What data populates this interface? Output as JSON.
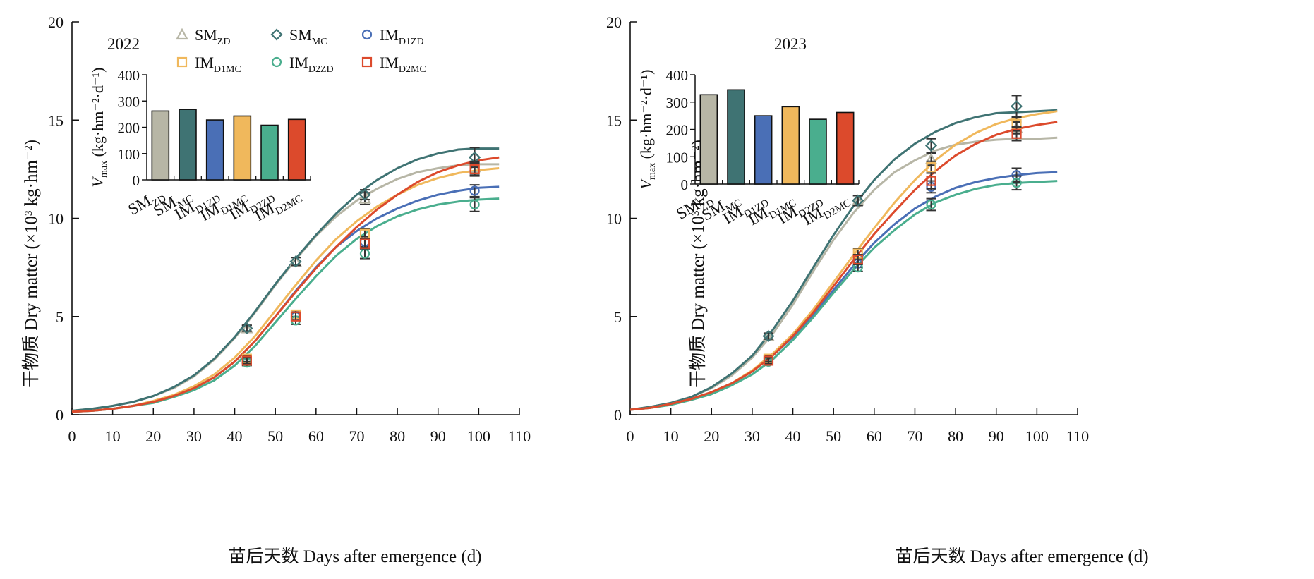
{
  "chart_data": [
    {
      "type": "line",
      "panel_label": "2022",
      "xlabel": "苗后天数 Days after emergence (d)",
      "ylabel": "干物质 Dry matter (×10³ kg·hm⁻²)",
      "xlim": [
        0,
        110
      ],
      "ylim": [
        0,
        20
      ],
      "x_ticks": [
        "0",
        "10",
        "20",
        "30",
        "40",
        "50",
        "60",
        "70",
        "80",
        "90",
        "100",
        "110"
      ],
      "y_ticks": [
        "0",
        "5",
        "10",
        "15",
        "20"
      ],
      "series": [
        {
          "name": "SM_ZD",
          "color": "#b7b6a6",
          "marker": "triangle",
          "curve_x": [
            0,
            5,
            10,
            15,
            20,
            25,
            30,
            35,
            40,
            45,
            50,
            55,
            60,
            65,
            70,
            75,
            80,
            85,
            90,
            95,
            99,
            105
          ],
          "curve_y": [
            0.2,
            0.3,
            0.45,
            0.65,
            0.95,
            1.35,
            1.95,
            2.8,
            3.9,
            5.2,
            6.6,
            7.9,
            9.1,
            10.1,
            10.9,
            11.5,
            12.0,
            12.35,
            12.55,
            12.7,
            12.75,
            12.75
          ],
          "obs_x": [
            43,
            55,
            72,
            99
          ],
          "obs_y": [
            4.4,
            7.8,
            11.0,
            12.6
          ],
          "obs_err": [
            0.15,
            0.2,
            0.3,
            0.3
          ]
        },
        {
          "name": "SM_MC",
          "color": "#3f7373",
          "marker": "diamond",
          "curve_x": [
            0,
            5,
            10,
            15,
            20,
            25,
            30,
            35,
            40,
            45,
            50,
            55,
            60,
            65,
            70,
            75,
            80,
            85,
            90,
            95,
            99,
            105
          ],
          "curve_y": [
            0.2,
            0.3,
            0.45,
            0.65,
            0.95,
            1.4,
            2.0,
            2.85,
            3.95,
            5.25,
            6.65,
            7.95,
            9.15,
            10.25,
            11.2,
            11.95,
            12.55,
            13.0,
            13.3,
            13.5,
            13.55,
            13.55
          ],
          "obs_x": [
            43,
            55,
            72,
            99
          ],
          "obs_y": [
            4.4,
            7.8,
            11.2,
            13.1
          ],
          "obs_err": [
            0.15,
            0.2,
            0.25,
            0.5
          ]
        },
        {
          "name": "IM_D1ZD",
          "color": "#4a6fb6",
          "marker": "circle",
          "curve_x": [
            0,
            5,
            10,
            15,
            20,
            25,
            30,
            35,
            40,
            45,
            50,
            55,
            60,
            65,
            70,
            75,
            80,
            85,
            90,
            95,
            100,
            105
          ],
          "curve_y": [
            0.15,
            0.2,
            0.3,
            0.45,
            0.65,
            0.95,
            1.35,
            1.9,
            2.7,
            3.75,
            5.0,
            6.3,
            7.5,
            8.55,
            9.35,
            10.0,
            10.5,
            10.9,
            11.2,
            11.4,
            11.55,
            11.6
          ],
          "obs_x": [
            43,
            55,
            72,
            99
          ],
          "obs_y": [
            2.75,
            5.0,
            8.8,
            11.4
          ],
          "obs_err": [
            0.15,
            0.2,
            0.25,
            0.3
          ]
        },
        {
          "name": "IM_D1MC",
          "color": "#f0b85c",
          "marker": "square",
          "curve_x": [
            0,
            5,
            10,
            15,
            20,
            25,
            30,
            35,
            40,
            45,
            50,
            55,
            60,
            65,
            70,
            75,
            80,
            85,
            90,
            95,
            100,
            105
          ],
          "curve_y": [
            0.15,
            0.2,
            0.3,
            0.45,
            0.7,
            1.0,
            1.45,
            2.05,
            2.9,
            4.0,
            5.3,
            6.6,
            7.85,
            8.95,
            9.85,
            10.6,
            11.2,
            11.7,
            12.05,
            12.3,
            12.45,
            12.55
          ],
          "obs_x": [
            43,
            55,
            72,
            99
          ],
          "obs_y": [
            2.85,
            5.1,
            9.2,
            12.5
          ],
          "obs_err": [
            0.15,
            0.2,
            0.25,
            0.3
          ]
        },
        {
          "name": "IM_D2ZD",
          "color": "#4aae8e",
          "marker": "circle",
          "curve_x": [
            0,
            5,
            10,
            15,
            20,
            25,
            30,
            35,
            40,
            45,
            50,
            55,
            60,
            65,
            70,
            75,
            80,
            85,
            90,
            95,
            100,
            105
          ],
          "curve_y": [
            0.15,
            0.2,
            0.3,
            0.45,
            0.6,
            0.9,
            1.25,
            1.75,
            2.5,
            3.5,
            4.7,
            5.9,
            7.05,
            8.1,
            8.95,
            9.6,
            10.1,
            10.45,
            10.7,
            10.85,
            10.95,
            11.0
          ],
          "obs_x": [
            43,
            55,
            72,
            99
          ],
          "obs_y": [
            2.65,
            4.8,
            8.2,
            10.7
          ],
          "obs_err": [
            0.15,
            0.2,
            0.25,
            0.35
          ]
        },
        {
          "name": "IM_D2MC",
          "color": "#dc4a2c",
          "marker": "square",
          "curve_x": [
            0,
            5,
            10,
            15,
            20,
            25,
            30,
            35,
            40,
            45,
            50,
            55,
            60,
            65,
            70,
            75,
            80,
            85,
            90,
            95,
            100,
            105
          ],
          "curve_y": [
            0.15,
            0.2,
            0.3,
            0.45,
            0.65,
            0.95,
            1.35,
            1.9,
            2.7,
            3.75,
            5.0,
            6.25,
            7.45,
            8.55,
            9.55,
            10.45,
            11.2,
            11.85,
            12.35,
            12.7,
            12.95,
            13.1
          ],
          "obs_x": [
            43,
            55,
            72,
            99
          ],
          "obs_y": [
            2.75,
            5.0,
            8.7,
            12.5
          ],
          "obs_err": [
            0.15,
            0.2,
            0.25,
            0.35
          ]
        }
      ],
      "inset": {
        "type": "bar",
        "ylabel": "Vmax (kg·hm⁻²·d⁻¹)",
        "ylim": [
          0,
          400
        ],
        "y_ticks": [
          "0",
          "100",
          "200",
          "300",
          "400"
        ],
        "categories": [
          "SM_ZD",
          "SM_MC",
          "IM_D1ZD",
          "IM_D1MC",
          "IM_D2ZD",
          "IM_D2MC"
        ],
        "values": [
          262,
          268,
          228,
          243,
          208,
          230
        ]
      }
    },
    {
      "type": "line",
      "panel_label": "2023",
      "xlabel": "苗后天数 Days after emergence (d)",
      "ylabel": "干物质 Dry matter (×10³ kg·hm⁻²)",
      "xlim": [
        0,
        110
      ],
      "ylim": [
        0,
        20
      ],
      "x_ticks": [
        "0",
        "10",
        "20",
        "30",
        "40",
        "50",
        "60",
        "70",
        "80",
        "90",
        "100",
        "110"
      ],
      "y_ticks": [
        "0",
        "5",
        "10",
        "15",
        "20"
      ],
      "series": [
        {
          "name": "SM_ZD",
          "color": "#b7b6a6",
          "marker": "triangle",
          "curve_x": [
            0,
            5,
            10,
            15,
            20,
            25,
            30,
            35,
            40,
            45,
            50,
            55,
            60,
            65,
            70,
            75,
            80,
            85,
            90,
            95,
            100,
            105
          ],
          "curve_y": [
            0.25,
            0.4,
            0.6,
            0.9,
            1.35,
            2.0,
            2.9,
            4.1,
            5.6,
            7.3,
            8.9,
            10.3,
            11.45,
            12.35,
            12.95,
            13.45,
            13.75,
            13.9,
            14.0,
            14.05,
            14.05,
            14.1
          ],
          "obs_x": [
            34,
            56,
            74,
            95
          ],
          "obs_y": [
            4.0,
            10.9,
            13.0,
            14.6
          ],
          "obs_err": [
            0.15,
            0.25,
            0.3,
            0.3
          ]
        },
        {
          "name": "SM_MC",
          "color": "#3f7373",
          "marker": "diamond",
          "curve_x": [
            0,
            5,
            10,
            15,
            20,
            25,
            30,
            35,
            40,
            45,
            50,
            55,
            60,
            65,
            70,
            75,
            80,
            85,
            90,
            95,
            100,
            105
          ],
          "curve_y": [
            0.25,
            0.4,
            0.6,
            0.9,
            1.4,
            2.1,
            3.0,
            4.3,
            5.8,
            7.5,
            9.15,
            10.65,
            11.95,
            13.0,
            13.8,
            14.4,
            14.85,
            15.15,
            15.35,
            15.4,
            15.45,
            15.5
          ],
          "obs_x": [
            34,
            56,
            74,
            95
          ],
          "obs_y": [
            4.0,
            10.9,
            13.7,
            15.7
          ],
          "obs_err": [
            0.15,
            0.25,
            0.35,
            0.55
          ]
        },
        {
          "name": "IM_D1ZD",
          "color": "#4a6fb6",
          "marker": "circle",
          "curve_x": [
            0,
            5,
            10,
            15,
            20,
            25,
            30,
            35,
            40,
            45,
            50,
            55,
            60,
            65,
            70,
            75,
            80,
            85,
            90,
            95,
            100,
            105
          ],
          "curve_y": [
            0.25,
            0.35,
            0.55,
            0.8,
            1.15,
            1.6,
            2.2,
            3.0,
            3.95,
            5.1,
            6.35,
            7.6,
            8.75,
            9.7,
            10.5,
            11.1,
            11.55,
            11.85,
            12.05,
            12.2,
            12.3,
            12.35
          ],
          "obs_x": [
            34,
            56,
            74,
            95
          ],
          "obs_y": [
            2.75,
            7.7,
            11.6,
            12.2
          ],
          "obs_err": [
            0.15,
            0.2,
            0.3,
            0.35
          ]
        },
        {
          "name": "IM_D1MC",
          "color": "#f0b85c",
          "marker": "square",
          "curve_x": [
            0,
            5,
            10,
            15,
            20,
            25,
            30,
            35,
            40,
            45,
            50,
            55,
            60,
            65,
            70,
            75,
            80,
            85,
            90,
            95,
            100,
            105
          ],
          "curve_y": [
            0.25,
            0.35,
            0.55,
            0.8,
            1.15,
            1.6,
            2.25,
            3.1,
            4.1,
            5.35,
            6.75,
            8.15,
            9.5,
            10.8,
            11.95,
            12.95,
            13.75,
            14.35,
            14.8,
            15.1,
            15.3,
            15.45
          ],
          "obs_x": [
            34,
            56,
            74,
            95
          ],
          "obs_y": [
            2.85,
            8.2,
            12.6,
            14.8
          ],
          "obs_err": [
            0.15,
            0.25,
            0.3,
            0.35
          ]
        },
        {
          "name": "IM_D2ZD",
          "color": "#4aae8e",
          "marker": "circle",
          "curve_x": [
            0,
            5,
            10,
            15,
            20,
            25,
            30,
            35,
            40,
            45,
            50,
            55,
            60,
            65,
            70,
            75,
            80,
            85,
            90,
            95,
            100,
            105
          ],
          "curve_y": [
            0.25,
            0.35,
            0.5,
            0.75,
            1.05,
            1.5,
            2.05,
            2.8,
            3.8,
            4.95,
            6.2,
            7.4,
            8.5,
            9.4,
            10.2,
            10.8,
            11.2,
            11.5,
            11.7,
            11.8,
            11.85,
            11.9
          ],
          "obs_x": [
            34,
            56,
            74,
            95
          ],
          "obs_y": [
            2.7,
            7.5,
            10.7,
            11.8
          ],
          "obs_err": [
            0.15,
            0.2,
            0.3,
            0.35
          ]
        },
        {
          "name": "IM_D2MC",
          "color": "#dc4a2c",
          "marker": "square",
          "curve_x": [
            0,
            5,
            10,
            15,
            20,
            25,
            30,
            35,
            40,
            45,
            50,
            55,
            60,
            65,
            70,
            75,
            80,
            85,
            90,
            95,
            100,
            105
          ],
          "curve_y": [
            0.25,
            0.35,
            0.55,
            0.8,
            1.15,
            1.6,
            2.2,
            3.0,
            4.0,
            5.2,
            6.55,
            7.9,
            9.2,
            10.35,
            11.45,
            12.4,
            13.2,
            13.8,
            14.25,
            14.55,
            14.75,
            14.9
          ],
          "obs_x": [
            34,
            56,
            74,
            95
          ],
          "obs_y": [
            2.75,
            7.9,
            11.9,
            14.3
          ],
          "obs_err": [
            0.15,
            0.25,
            0.4,
            0.35
          ]
        }
      ],
      "inset": {
        "type": "bar",
        "ylabel": "Vmax (kg·hm⁻²·d⁻¹)",
        "ylim": [
          0,
          400
        ],
        "y_ticks": [
          "0",
          "100",
          "200",
          "300",
          "400"
        ],
        "categories": [
          "SM_ZD",
          "SM_MC",
          "IM_D1ZD",
          "IM_D1MC",
          "IM_D2ZD",
          "IM_D2MC"
        ],
        "values": [
          327,
          345,
          250,
          283,
          237,
          262
        ]
      }
    }
  ]
}
